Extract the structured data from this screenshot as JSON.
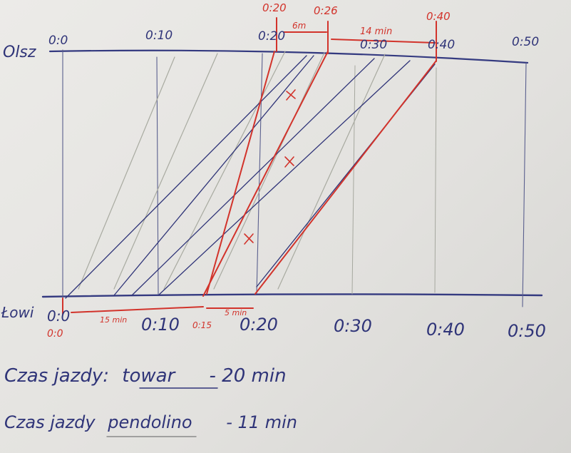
{
  "top_axis": {
    "station": "Olsz",
    "ticks": [
      "0:0",
      "0:10",
      "0:20",
      "0:30",
      "0:40",
      "0:50"
    ]
  },
  "top_annotations": [
    "0:20",
    "0:26",
    "0:40",
    "6m",
    "14 min"
  ],
  "bottom_axis": {
    "station": "Łowi",
    "ticks": [
      "0:0",
      "0:10",
      "0:15",
      "0:20",
      "0:30",
      "0:40",
      "0:50"
    ]
  },
  "bottom_annotations": [
    "0:0",
    "15 min",
    "5 min"
  ],
  "notes": [
    {
      "label": "Czas jazdy:",
      "train": "towar",
      "time": "- 20 min"
    },
    {
      "label": "Czas jazdy",
      "train": "pendolino",
      "time": "- 11 min"
    }
  ]
}
